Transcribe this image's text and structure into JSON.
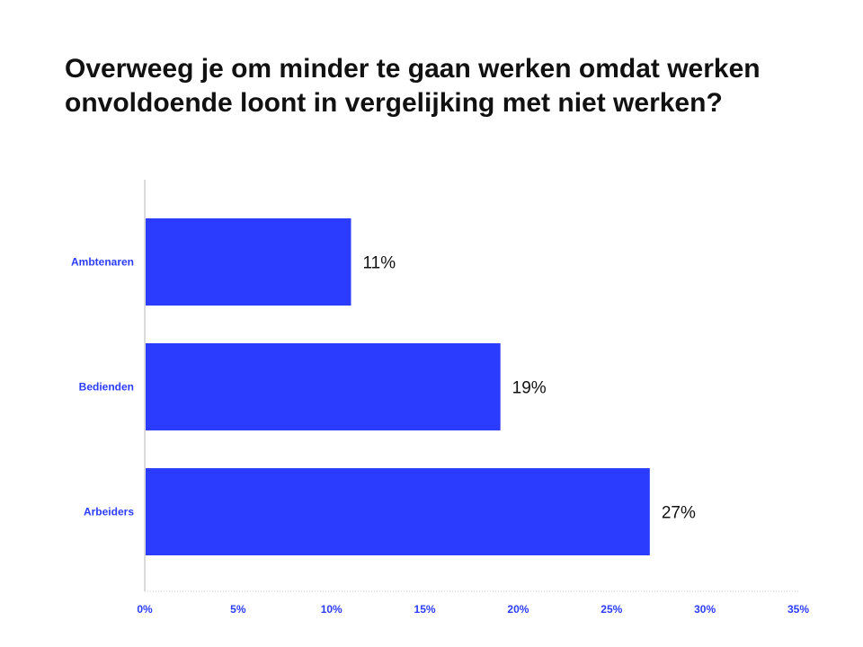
{
  "chart_data": {
    "type": "bar",
    "orientation": "horizontal",
    "title": "Overweeg je om minder te gaan werken omdat werken onvoldoende loont in vergelijking met niet werken?",
    "categories": [
      "Ambtenaren",
      "Bedienden",
      "Arbeiders"
    ],
    "values": [
      11,
      19,
      27
    ],
    "data_labels": [
      "11%",
      "19%",
      "27%"
    ],
    "xlim": [
      0,
      35
    ],
    "x_ticks": [
      0,
      5,
      10,
      15,
      20,
      25,
      30,
      35
    ],
    "x_tick_labels": [
      "0%",
      "5%",
      "10%",
      "15%",
      "20%",
      "25%",
      "30%",
      "35%"
    ],
    "grid": false,
    "legend": "none"
  },
  "colors": {
    "bar": "#2b3cff",
    "label": "#2b3cff",
    "axis": "#cfcfcf",
    "text": "#111111"
  }
}
